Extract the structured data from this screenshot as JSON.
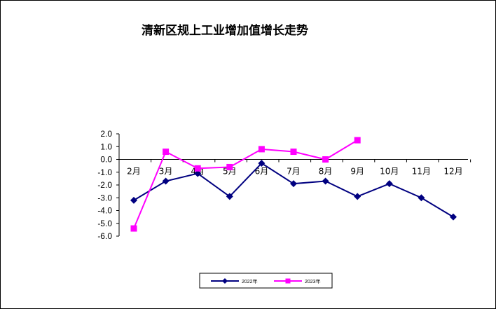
{
  "chart_data": {
    "type": "line",
    "title": "清新区规上工业增加值增长走势",
    "categories": [
      "2月",
      "3月",
      "4月",
      "5月",
      "6月",
      "7月",
      "8月",
      "9月",
      "10月",
      "11月",
      "12月"
    ],
    "y_tick_labels": [
      "2.0",
      "1.0",
      "0.0",
      "-1.0",
      "-2.0",
      "-3.0",
      "-4.0",
      "-5.0",
      "-6.0"
    ],
    "ylim": [
      -6.0,
      2.0
    ],
    "grid": false,
    "legend_position": "bottom",
    "series": [
      {
        "name": "2022年",
        "color": "#000080",
        "marker": "diamond",
        "values": [
          -3.2,
          -1.7,
          -1.1,
          -2.9,
          -0.3,
          -1.9,
          -1.7,
          -2.9,
          -1.9,
          -3.0,
          -4.5
        ]
      },
      {
        "name": "2023年",
        "color": "#ff00ff",
        "marker": "square",
        "values": [
          -5.4,
          0.6,
          -0.7,
          -0.6,
          0.8,
          0.6,
          0.0,
          1.5,
          null,
          null,
          null
        ]
      }
    ]
  }
}
